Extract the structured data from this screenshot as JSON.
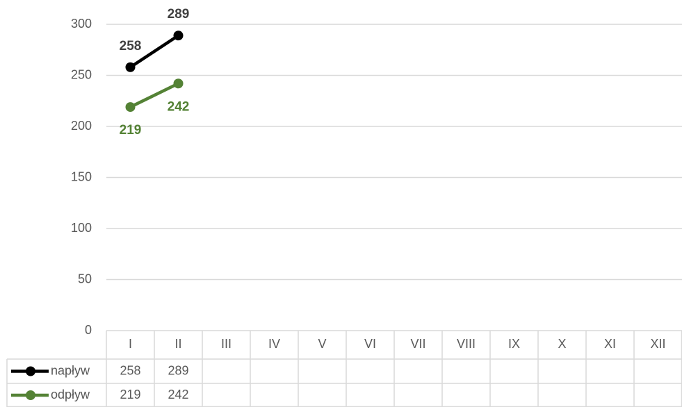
{
  "chart_data": {
    "type": "line",
    "categories": [
      "I",
      "II",
      "III",
      "IV",
      "V",
      "VI",
      "VII",
      "VIII",
      "IX",
      "X",
      "XI",
      "XII"
    ],
    "series": [
      {
        "name": "napływ",
        "color": "#000000",
        "label_color": "#404040",
        "values": [
          258,
          289,
          null,
          null,
          null,
          null,
          null,
          null,
          null,
          null,
          null,
          null
        ]
      },
      {
        "name": "odpływ",
        "color": "#548235",
        "label_color": "#548235",
        "values": [
          219,
          242,
          null,
          null,
          null,
          null,
          null,
          null,
          null,
          null,
          null,
          null
        ]
      }
    ],
    "ylim": [
      0,
      300
    ],
    "yticks": [
      0,
      50,
      100,
      150,
      200,
      250,
      300
    ],
    "grid": true,
    "data_table": true
  }
}
